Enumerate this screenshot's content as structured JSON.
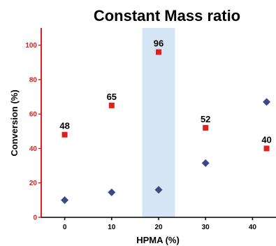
{
  "chart_data": {
    "type": "scatter",
    "title": "Constant Mass ratio",
    "xlabel": "HPMA (%)",
    "ylabel": "Conversion (%)",
    "xlim": [
      -5,
      45
    ],
    "ylim": [
      0,
      110
    ],
    "xticks": [
      "0",
      "10",
      "20",
      "30",
      "40"
    ],
    "yticks": [
      "0",
      "20",
      "40",
      "60",
      "80",
      "100"
    ],
    "highlight_range": [
      16.5,
      23.5
    ],
    "series": [
      {
        "marker": "square",
        "color": "#e0201c",
        "points": [
          {
            "x": 0,
            "y": 48,
            "label": "48"
          },
          {
            "x": 10,
            "y": 65,
            "label": "65"
          },
          {
            "x": 20,
            "y": 96,
            "label": "96"
          },
          {
            "x": 30,
            "y": 52,
            "label": "52"
          },
          {
            "x": 43,
            "y": 40,
            "label": "40"
          }
        ]
      },
      {
        "marker": "diamond",
        "color": "#3b4a86",
        "points": [
          {
            "x": 0,
            "y": 10
          },
          {
            "x": 10,
            "y": 14.5
          },
          {
            "x": 20,
            "y": 16
          },
          {
            "x": 30,
            "y": 31.5
          },
          {
            "x": 43,
            "y": 67
          }
        ]
      }
    ],
    "highlight_color": "#d5e5f4",
    "yaxis_color": "#e0201c"
  }
}
